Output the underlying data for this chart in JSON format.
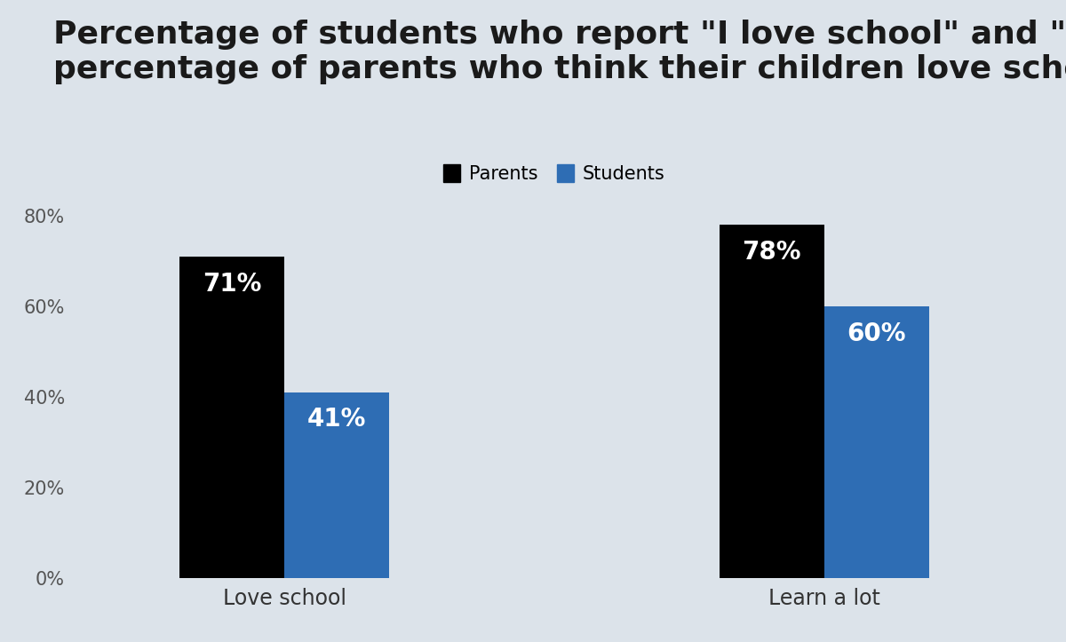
{
  "title_line1": "Percentage of students who report \"I love school\" and \"I learn a lot\" vs.",
  "title_line2": "percentage of parents who think their children love school and learn a lot",
  "categories": [
    "Love school",
    "Learn a lot"
  ],
  "parents_values": [
    71,
    78
  ],
  "students_values": [
    41,
    60
  ],
  "parents_color": "#000000",
  "students_color": "#2e6db4",
  "background_color": "#dce3ea",
  "ylabel_ticks": [
    "0%",
    "20%",
    "40%",
    "60%",
    "80%"
  ],
  "ytick_values": [
    0,
    20,
    40,
    60,
    80
  ],
  "ylim": [
    0,
    88
  ],
  "bar_width": 0.35,
  "legend_labels": [
    "Parents",
    "Students"
  ],
  "label_fontsize": 17,
  "title_fontsize": 26,
  "tick_fontsize": 15,
  "annotation_fontsize": 20
}
